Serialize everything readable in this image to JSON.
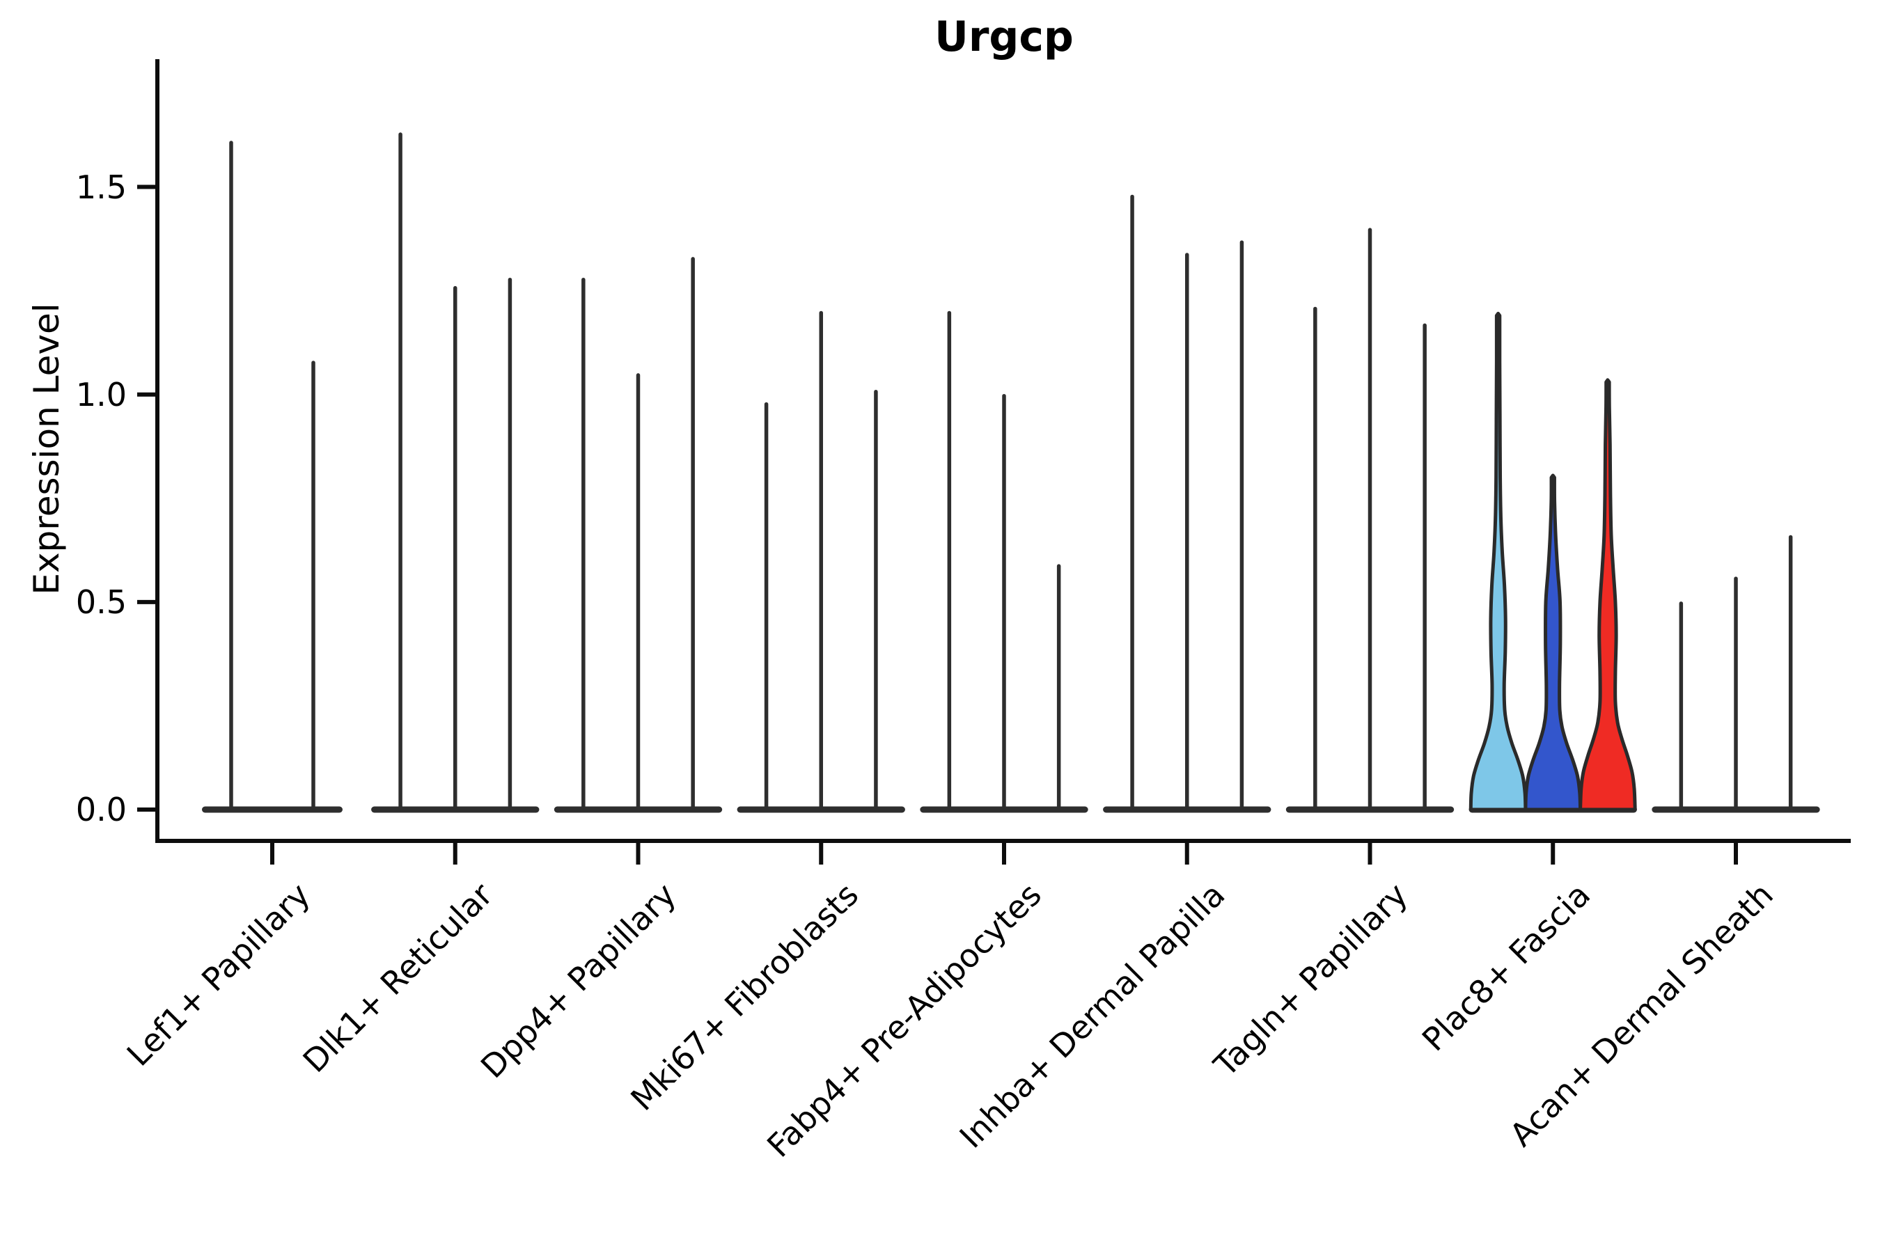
{
  "title": "Urgcp",
  "chart_data": {
    "type": "violin",
    "title": "Urgcp",
    "xlabel": "",
    "ylabel": "Expression Level",
    "ylim": [
      0,
      1.81
    ],
    "yticks": [
      {
        "value": 0.0,
        "label": "0.0"
      },
      {
        "value": 0.5,
        "label": "0.5"
      },
      {
        "value": 1.0,
        "label": "1.0"
      },
      {
        "value": 1.5,
        "label": "1.5"
      }
    ],
    "grid": "off",
    "legend_position": "none",
    "categories": [
      "Lef1+ Papillary",
      "Dlk1+ Reticular",
      "Dpp4+ Papillary",
      "Mki67+ Fibroblasts",
      "Fabp4+ Pre-Adipocytes",
      "Inhba+ Dermal Papilla",
      "Tagln+ Papillary",
      "Plac8+ Fascia",
      "Acan+ Dermal Sheath"
    ],
    "groups": [
      {
        "label": "Lef1+ Papillary",
        "violins": [
          {
            "max": 1.61,
            "style": "thin"
          },
          {
            "max": 1.08,
            "style": "thin"
          }
        ]
      },
      {
        "label": "Dlk1+ Reticular",
        "violins": [
          {
            "max": 1.63,
            "style": "thin"
          },
          {
            "max": 1.26,
            "style": "thin"
          },
          {
            "max": 1.28,
            "style": "thin"
          }
        ]
      },
      {
        "label": "Dpp4+ Papillary",
        "violins": [
          {
            "max": 1.28,
            "style": "thin"
          },
          {
            "max": 1.05,
            "style": "thin"
          },
          {
            "max": 1.33,
            "style": "thin"
          }
        ]
      },
      {
        "label": "Mki67+ Fibroblasts",
        "violins": [
          {
            "max": 0.98,
            "style": "thin"
          },
          {
            "max": 1.2,
            "style": "thin"
          },
          {
            "max": 1.01,
            "style": "thin"
          }
        ]
      },
      {
        "label": "Fabp4+ Pre-Adipocytes",
        "violins": [
          {
            "max": 1.2,
            "style": "thin"
          },
          {
            "max": 1.0,
            "style": "thin"
          },
          {
            "max": 0.59,
            "style": "thin"
          }
        ]
      },
      {
        "label": "Inhba+ Dermal Papilla",
        "violins": [
          {
            "max": 1.48,
            "style": "thin"
          },
          {
            "max": 1.34,
            "style": "thin"
          },
          {
            "max": 1.37,
            "style": "thin"
          }
        ]
      },
      {
        "label": "Tagln+ Papillary",
        "violins": [
          {
            "max": 1.21,
            "style": "thin"
          },
          {
            "max": 1.4,
            "style": "thin"
          },
          {
            "max": 1.17,
            "style": "thin"
          }
        ]
      },
      {
        "label": "Plac8+ Fascia",
        "violins": [
          {
            "max": 1.19,
            "style": "filled",
            "color": "#7EC7E8",
            "profile": "skyblue"
          },
          {
            "max": 0.8,
            "style": "filled",
            "color": "#3356CC",
            "profile": "blue"
          },
          {
            "max": 1.03,
            "style": "filled",
            "color": "#EF2B24",
            "profile": "red"
          }
        ]
      },
      {
        "label": "Acan+ Dermal Sheath",
        "violins": [
          {
            "max": 0.5,
            "style": "thin"
          },
          {
            "max": 0.56,
            "style": "thin"
          },
          {
            "max": 0.66,
            "style": "thin"
          }
        ]
      }
    ],
    "profiles": {
      "skyblue": [
        [
          0,
          1.0
        ],
        [
          0.04,
          0.98
        ],
        [
          0.08,
          0.9
        ],
        [
          0.12,
          0.72
        ],
        [
          0.16,
          0.5
        ],
        [
          0.2,
          0.33
        ],
        [
          0.24,
          0.24
        ],
        [
          0.3,
          0.22
        ],
        [
          0.38,
          0.26
        ],
        [
          0.46,
          0.27
        ],
        [
          0.54,
          0.23
        ],
        [
          0.62,
          0.15
        ],
        [
          0.7,
          0.1
        ],
        [
          0.8,
          0.075
        ],
        [
          0.95,
          0.065
        ],
        [
          1.08,
          0.055
        ],
        [
          1.15,
          0.05
        ],
        [
          1.19,
          0.045
        ]
      ],
      "blue": [
        [
          0,
          1.0
        ],
        [
          0.04,
          0.98
        ],
        [
          0.08,
          0.9
        ],
        [
          0.12,
          0.72
        ],
        [
          0.16,
          0.5
        ],
        [
          0.2,
          0.33
        ],
        [
          0.24,
          0.25
        ],
        [
          0.3,
          0.24
        ],
        [
          0.4,
          0.27
        ],
        [
          0.5,
          0.26
        ],
        [
          0.58,
          0.17
        ],
        [
          0.66,
          0.1
        ],
        [
          0.74,
          0.06
        ],
        [
          0.8,
          0.05
        ]
      ],
      "red": [
        [
          0,
          1.0
        ],
        [
          0.05,
          0.97
        ],
        [
          0.09,
          0.89
        ],
        [
          0.13,
          0.72
        ],
        [
          0.17,
          0.52
        ],
        [
          0.21,
          0.36
        ],
        [
          0.26,
          0.28
        ],
        [
          0.33,
          0.28
        ],
        [
          0.42,
          0.31
        ],
        [
          0.5,
          0.28
        ],
        [
          0.58,
          0.2
        ],
        [
          0.66,
          0.13
        ],
        [
          0.76,
          0.1
        ],
        [
          0.88,
          0.085
        ],
        [
          0.97,
          0.06
        ],
        [
          1.03,
          0.05
        ]
      ]
    },
    "colors": {
      "spine": "#0d0d0d",
      "violin_line": "#2e2e2e",
      "violin_outline": "#2a2a2a",
      "text": "#000000",
      "highlight_skyblue": "#7EC7E8",
      "highlight_blue": "#3356CC",
      "highlight_red": "#EF2B24"
    }
  }
}
